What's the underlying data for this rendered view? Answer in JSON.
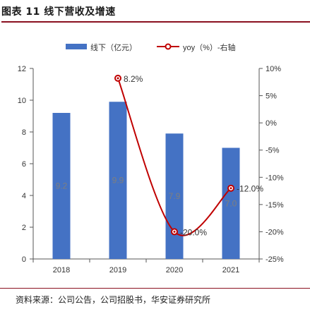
{
  "figure": {
    "title": "图表 11 线下营收及增速",
    "source": "资料来源：公司公告，公司招股书，华安证券研究所"
  },
  "chart_data": {
    "type": "bar",
    "categories": [
      "2018",
      "2019",
      "2020",
      "2021"
    ],
    "series": [
      {
        "name": "线下（亿元）",
        "kind": "bar",
        "axis": "left",
        "values": [
          9.2,
          9.9,
          7.9,
          7.0
        ],
        "data_labels": [
          "9.2",
          "9.9",
          "7.9",
          "7.0"
        ],
        "color": "#4472C4"
      },
      {
        "name": "yoy（%）-右轴",
        "kind": "line",
        "axis": "right",
        "values": [
          null,
          8.2,
          -20.0,
          -12.0
        ],
        "data_labels": [
          "",
          "8.2%",
          "-20.0%",
          "-12.0%"
        ],
        "color": "#C00000"
      }
    ],
    "ylim": [
      0,
      12
    ],
    "yticks": [
      "0",
      "2",
      "4",
      "6",
      "8",
      "10",
      "12"
    ],
    "y2lim": [
      -25,
      10
    ],
    "y2ticks": [
      "-25%",
      "-20%",
      "-15%",
      "-10%",
      "-5%",
      "0%",
      "5%",
      "10%"
    ],
    "grid": false,
    "legend": "top"
  }
}
